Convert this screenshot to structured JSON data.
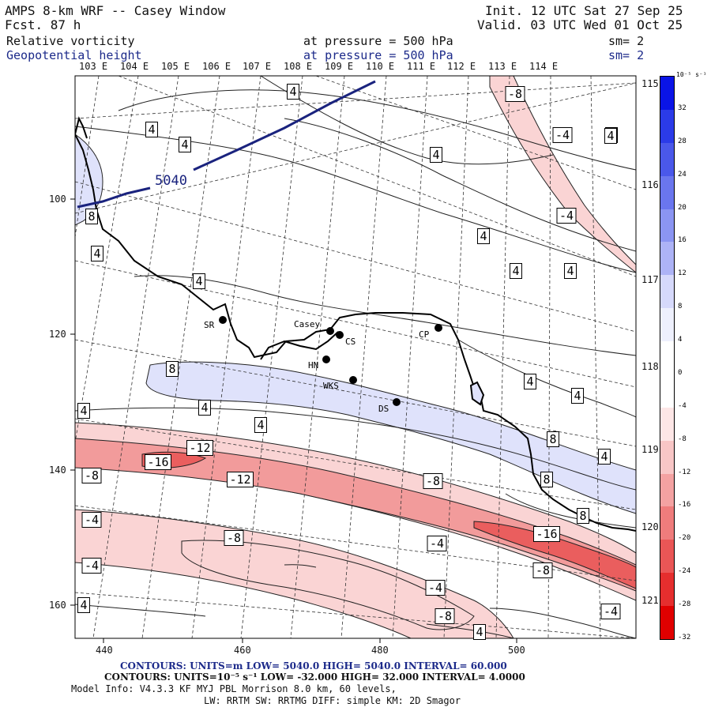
{
  "header": {
    "title": "AMPS 8-km WRF -- Casey Window",
    "fcst": "Fcst.    87 h",
    "init": "Init. 12 UTC Sat 27 Sep 25",
    "valid": "Valid. 03 UTC Wed 01 Oct 25",
    "field1": {
      "name": "Relative vorticity",
      "level": "at pressure =  500 hPa",
      "sm": "sm= 2"
    },
    "field2": {
      "name": "Geopotential height",
      "level": "at pressure =  500 hPa",
      "sm": "sm= 2"
    }
  },
  "lon_labels": [
    "103 E",
    "104 E",
    "105 E",
    "106 E",
    "107 E",
    "108 E",
    "109 E",
    "110 E",
    "111 E",
    "112 E",
    "113 E",
    "114 E"
  ],
  "right_lon_labels": [
    "115 E",
    "116 E",
    "117 E",
    "118 E",
    "119 E",
    "120 E",
    "121 E"
  ],
  "x_ticks": [
    "440",
    "460",
    "480",
    "500"
  ],
  "y_ticks": [
    "100",
    "120",
    "140",
    "160"
  ],
  "colorbar": {
    "unit": "10⁻⁵ s⁻¹",
    "labels": [
      "32",
      "28",
      "24",
      "20",
      "16",
      "12",
      "8",
      "4",
      "0",
      "-4",
      "-8",
      "-12",
      "-16",
      "-20",
      "-24",
      "-28",
      "-32"
    ],
    "colors": [
      "#0a14e6",
      "#2b3be8",
      "#4a58ea",
      "#6a76ee",
      "#8b95f2",
      "#adb3f6",
      "#d6d9fb",
      "#eef0fd",
      "#ffffff",
      "#ffffff",
      "#fde6e6",
      "#f8c6c6",
      "#f4a2a2",
      "#ef7c7c",
      "#ea5656",
      "#e52e2e",
      "#e00000"
    ]
  },
  "stations": [
    {
      "label": "SR"
    },
    {
      "label": "Casey"
    },
    {
      "label": "CS"
    },
    {
      "label": "CP"
    },
    {
      "label": "HN"
    },
    {
      "label": "WKS"
    },
    {
      "label": "DS"
    }
  ],
  "height_label": "5040",
  "contour_labels": [
    "4",
    "4",
    "4",
    "4",
    "4",
    "-8",
    "-4",
    "4",
    "4",
    "-4",
    "8",
    "4",
    "4",
    "4",
    "4",
    "4",
    "8",
    "4",
    "4",
    "4",
    "8",
    "4",
    "8",
    "8",
    "-12",
    "-16",
    "-8",
    "-12",
    "-8",
    "-4",
    "-8",
    "-4",
    "-16",
    "-8",
    "-4",
    "-4",
    "-8",
    "4",
    "4",
    "-4",
    "4"
  ],
  "footer": {
    "line1": "CONTOURS:  UNITS=m   LOW=  5040.0        HIGH=  5040.0        INTERVAL=   60.000",
    "line2": "CONTOURS:  UNITS=10⁻⁵ s⁻¹  LOW= -32.000       HIGH=  32.000       INTERVAL=   4.0000",
    "line3": "Model Info: V4.3.3   KF      MYJ PBL  Morrison           8.0 km,  60 levels,",
    "line4": "LW: RRTM SW: RRTMG   DIFF: simple KM: 2D Smagor"
  }
}
